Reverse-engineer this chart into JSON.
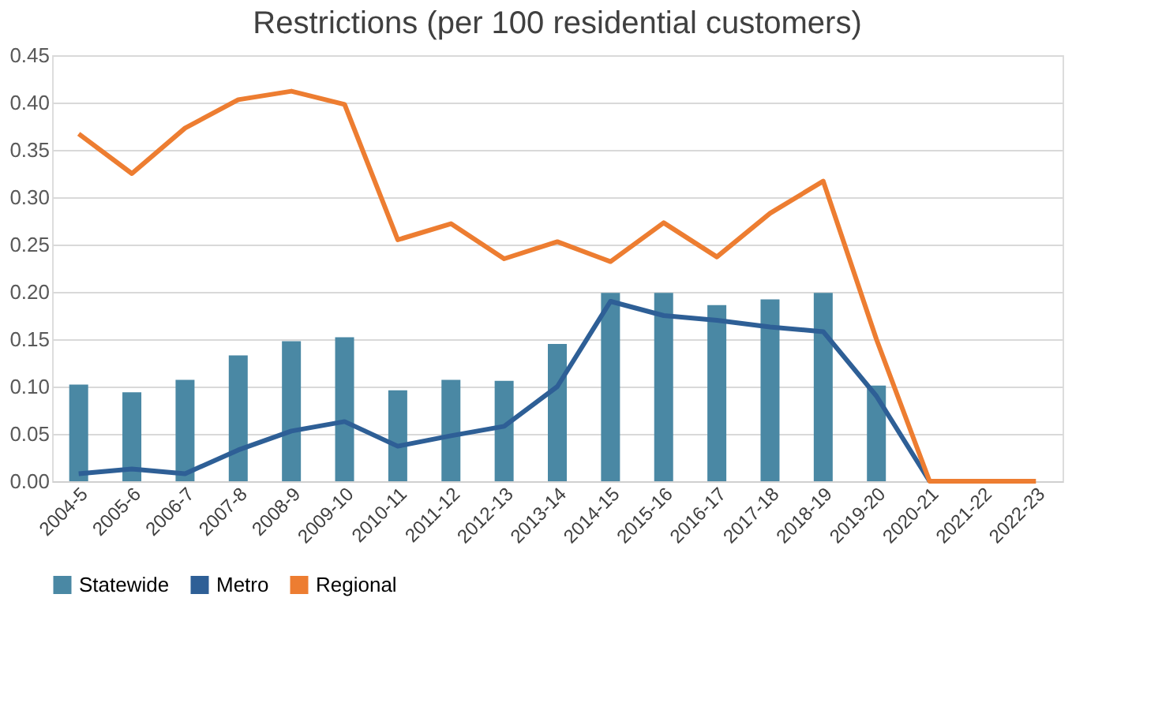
{
  "chart_data": {
    "type": "bar",
    "title": "Restrictions (per 100 residential customers)",
    "categories": [
      "2004-5",
      "2005-6",
      "2006-7",
      "2007-8",
      "2008-9",
      "2009-10",
      "2010-11",
      "2011-12",
      "2012-13",
      "2013-14",
      "2014-15",
      "2015-16",
      "2016-17",
      "2017-18",
      "2018-19",
      "2019-20",
      "2020-21",
      "2021-22",
      "2022-23"
    ],
    "series": [
      {
        "name": "Statewide",
        "color": "#4a88a4",
        "values": [
          0.102,
          0.094,
          0.107,
          0.133,
          0.148,
          0.152,
          0.096,
          0.107,
          0.106,
          0.145,
          0.199,
          0.199,
          0.186,
          0.192,
          0.199,
          0.101,
          null,
          null,
          null
        ]
      },
      {
        "name": "Metro",
        "type": "line",
        "color": "#2e5f96",
        "values": [
          0.008,
          0.013,
          0.008,
          0.033,
          0.053,
          0.063,
          0.037,
          0.048,
          0.058,
          0.1,
          0.19,
          0.175,
          0.17,
          0.163,
          0.158,
          0.09,
          0,
          null,
          null
        ]
      },
      {
        "name": "Regional",
        "type": "line",
        "color": "#ed7d31",
        "values": [
          0.367,
          0.325,
          0.373,
          0.403,
          0.412,
          0.398,
          0.255,
          0.272,
          0.235,
          0.253,
          0.232,
          0.273,
          0.237,
          0.283,
          0.317,
          0.15,
          0,
          0,
          0
        ]
      }
    ],
    "ylim": [
      0,
      0.45
    ],
    "yticks": [
      {
        "value": 0,
        "label": "0.00"
      },
      {
        "value": 0.05,
        "label": "0.05"
      },
      {
        "value": 0.1,
        "label": "0.10"
      },
      {
        "value": 0.15,
        "label": "0.15"
      },
      {
        "value": 0.2,
        "label": "0.20"
      },
      {
        "value": 0.25,
        "label": "0.25"
      },
      {
        "value": 0.3,
        "label": "0.30"
      },
      {
        "value": 0.35,
        "label": "0.35"
      },
      {
        "value": 0.4,
        "label": "0.40"
      },
      {
        "value": 0.45,
        "label": "0.45"
      }
    ],
    "grid": "y",
    "legend": "bottom"
  }
}
